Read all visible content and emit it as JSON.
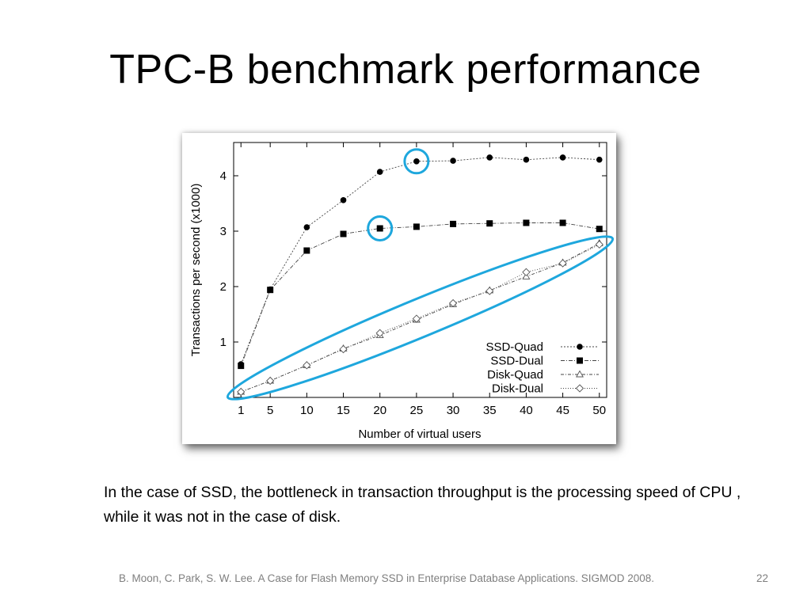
{
  "slide": {
    "title": "TPC-B benchmark performance",
    "caption": "In the case of SSD, the bottleneck  in transaction throughput is the processing speed of CPU , while it was not in the case of disk.",
    "footer": "B. Moon, C. Park, S. W. Lee. A Case for Flash Memory SSD in Enterprise Database Applications. SIGMOD 2008.",
    "page_number": "22"
  },
  "colors": {
    "highlight": "#1ea7dd",
    "series": "#000000",
    "caption_text": "#000000",
    "footer_text": "#7f7f7f"
  },
  "chart_data": {
    "type": "line",
    "title": "",
    "xlabel": "Number of virtual users",
    "ylabel": "Transactions per second (x1000)",
    "x": [
      1,
      5,
      10,
      15,
      20,
      25,
      30,
      35,
      40,
      45,
      50
    ],
    "x_tick_labels": [
      "1",
      "5",
      "10",
      "15",
      "20",
      "25",
      "30",
      "35",
      "40",
      "45",
      "50"
    ],
    "y_ticks": [
      1,
      2,
      3,
      4
    ],
    "y_tick_labels": [
      "1",
      "2",
      "3",
      "4"
    ],
    "xlim": [
      0,
      51
    ],
    "ylim": [
      0,
      4.6
    ],
    "grid": false,
    "legend_position": "bottom-right",
    "series": [
      {
        "name": "SSD-Quad",
        "marker": "circle",
        "values": [
          0.6,
          1.95,
          3.07,
          3.56,
          4.07,
          4.26,
          4.27,
          4.33,
          4.29,
          4.33,
          4.29
        ]
      },
      {
        "name": "SSD-Dual",
        "marker": "square",
        "values": [
          0.57,
          1.94,
          2.65,
          2.95,
          3.05,
          3.08,
          3.13,
          3.14,
          3.15,
          3.15,
          3.04
        ]
      },
      {
        "name": "Disk-Quad",
        "marker": "triangle",
        "values": [
          0.1,
          0.3,
          0.58,
          0.88,
          1.12,
          1.4,
          1.68,
          1.93,
          2.18,
          2.43,
          2.78
        ]
      },
      {
        "name": "Disk-Dual",
        "marker": "diamond",
        "values": [
          0.1,
          0.3,
          0.58,
          0.87,
          1.16,
          1.42,
          1.7,
          1.92,
          2.26,
          2.42,
          2.76
        ]
      }
    ],
    "annotations": [
      {
        "type": "circle",
        "series": "SSD-Quad",
        "x": 25,
        "y": 4.26
      },
      {
        "type": "circle",
        "series": "SSD-Dual",
        "x": 20,
        "y": 3.05
      },
      {
        "type": "ellipse",
        "series": [
          "Disk-Quad",
          "Disk-Dual"
        ],
        "from": {
          "x": 1,
          "y": 0.1
        },
        "to": {
          "x": 50,
          "y": 2.77
        }
      }
    ]
  }
}
